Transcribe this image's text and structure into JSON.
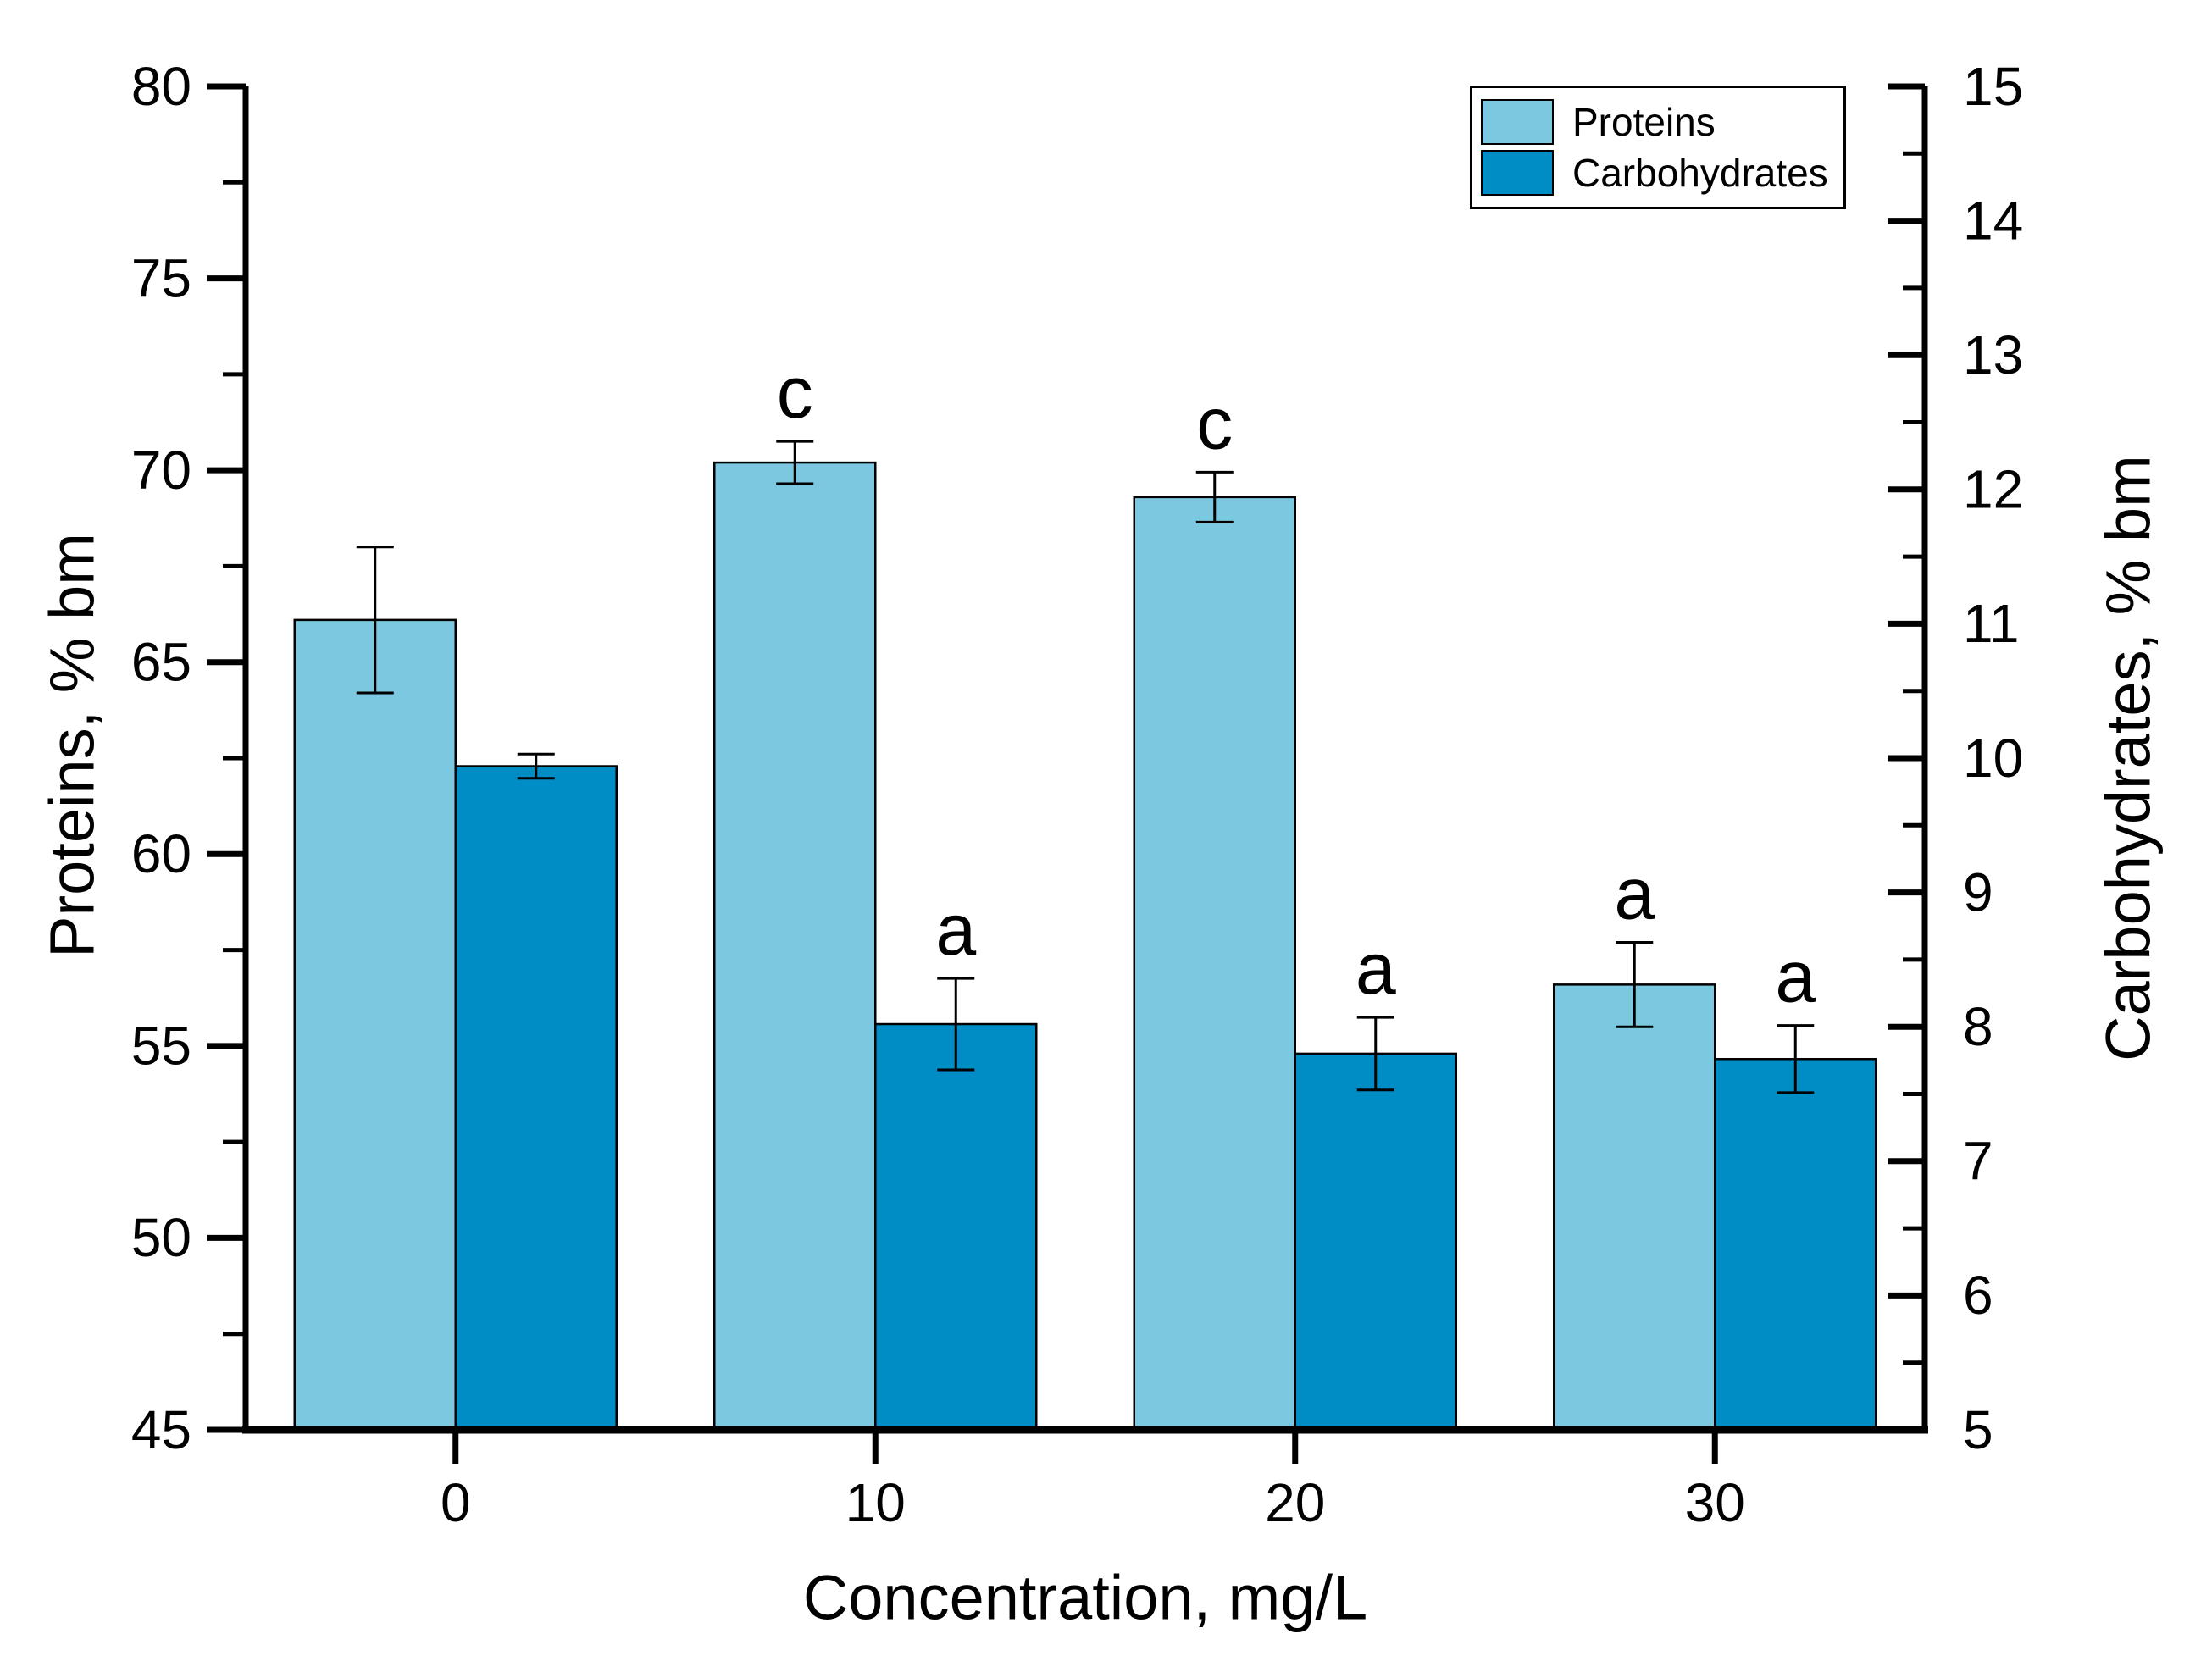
{
  "chart_data": {
    "type": "bar",
    "title": "",
    "xlabel": "Concentration, mg/L",
    "categories": [
      "0",
      "10",
      "20",
      "30"
    ],
    "left_axis": {
      "label": "Proteins, % bm",
      "min": 45,
      "max": 80,
      "major_ticks": [
        45,
        50,
        55,
        60,
        65,
        70,
        75,
        80
      ],
      "minor_step": 2.5
    },
    "right_axis": {
      "label": "Carbohydrates, % bm",
      "min": 5,
      "max": 15,
      "major_ticks": [
        5,
        6,
        7,
        8,
        9,
        10,
        11,
        12,
        13,
        14,
        15
      ],
      "minor_step": 0.5
    },
    "series": [
      {
        "name": "Proteins",
        "axis": "left",
        "color": "#7DC8E1",
        "values": [
          66.1,
          70.2,
          69.3,
          56.6
        ],
        "errors": [
          1.9,
          0.55,
          0.65,
          1.1
        ],
        "letters": [
          "",
          "c",
          "c",
          "a"
        ]
      },
      {
        "name": "Carbohydrates",
        "axis": "right",
        "color": "#008CC4",
        "values": [
          9.94,
          8.02,
          7.8,
          7.76
        ],
        "errors": [
          0.09,
          0.34,
          0.27,
          0.25
        ],
        "letters": [
          "",
          "a",
          "a",
          "a"
        ]
      }
    ],
    "legend": {
      "position": "top-right",
      "entries": [
        "Proteins",
        "Carbohydrates"
      ]
    },
    "grid": false,
    "error_bar_color": "#000000",
    "axis_color": "#000000"
  }
}
